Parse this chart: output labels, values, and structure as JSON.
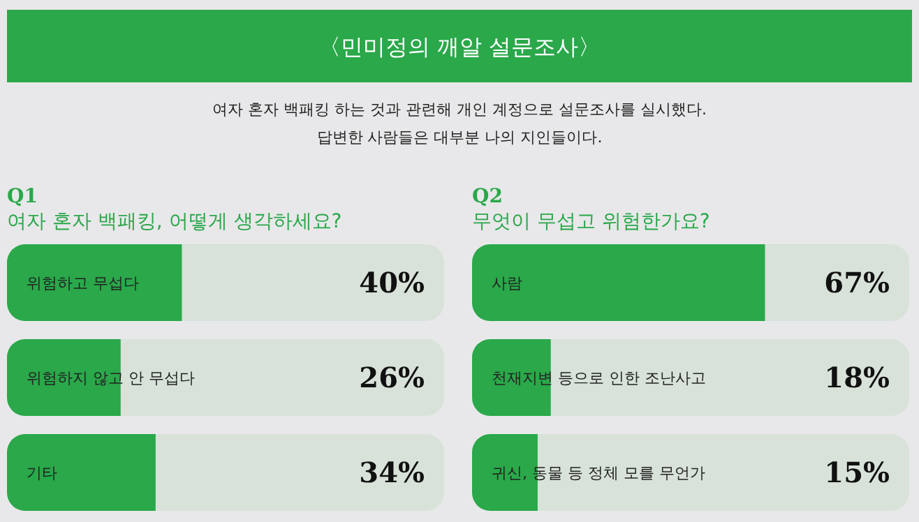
{
  "chart_data": [
    {
      "type": "other",
      "title": "〈민미정의 깨알 설문조사〉",
      "annotations": [
        "여자 혼자 백패킹 하는 것과 관련해 개인 계정으로 설문조사를 실시했다.",
        "답변한 사람들은 대부분 나의 지인들이다."
      ],
      "color": "#2aa84a"
    },
    {
      "type": "bar",
      "orientation": "horizontal",
      "title": "Q1",
      "subtitle": "여자 혼자 백패킹, 어떻게 생각하세요?",
      "categories": [
        "위험하고 무섭다",
        "위험하지 않고 안 무섭다",
        "기타"
      ],
      "values": [
        40,
        26,
        34
      ],
      "value_labels": [
        "40%",
        "26%",
        "34%"
      ],
      "color": "#2aa84a",
      "xlim": [
        0,
        100
      ],
      "tick_labels": "y"
    },
    {
      "type": "bar",
      "orientation": "horizontal",
      "title": "Q2",
      "subtitle": "무엇이 무섭고 위험한가요?",
      "categories": [
        "사람",
        "천재지변 등으로 인한 조난사고",
        "귀신, 동물 등 정체 모를 무언가"
      ],
      "values": [
        67,
        18,
        15
      ],
      "value_labels": [
        "67%",
        "18%",
        "15%"
      ],
      "color": "#2aa84a",
      "xlim": [
        0,
        100
      ],
      "tick_labels": "y"
    }
  ]
}
